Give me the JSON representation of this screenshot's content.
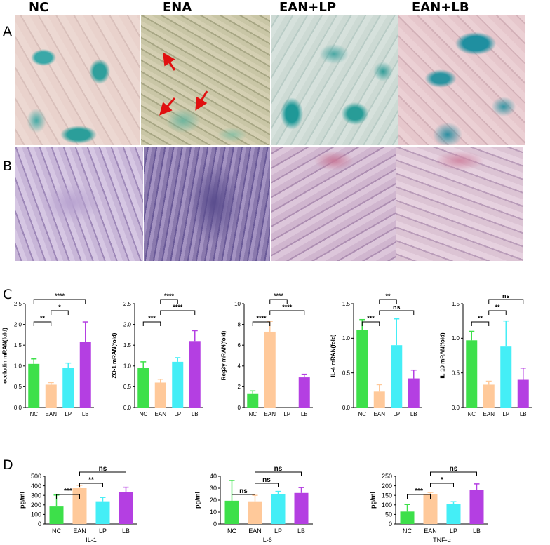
{
  "panel_labels": {
    "a": "A",
    "b": "B",
    "c": "C",
    "d": "D"
  },
  "column_headers": [
    "NC",
    "ENA",
    "EAN+LP",
    "EAN+LB"
  ],
  "colors": {
    "NC": "#3de04a",
    "EAN": "#ffc99a",
    "LP": "#44eef6",
    "LB": "#b43fe2"
  },
  "chart_data": [
    {
      "type": "bar",
      "categories": [
        "NC",
        "EAN",
        "LP",
        "LB"
      ],
      "values": [
        1.05,
        0.55,
        0.95,
        1.58
      ],
      "errors": [
        0.12,
        0.05,
        0.12,
        0.48
      ],
      "ylabel": "occludin mRAN(fold)",
      "ylim": [
        0,
        2.5
      ],
      "yticks": [
        "0.0",
        "0.5",
        "1.0",
        "1.5",
        "2.0",
        "2.5"
      ],
      "sig": [
        {
          "a": 0,
          "b": 1,
          "label": "**"
        },
        {
          "a": 1,
          "b": 2,
          "label": "*"
        },
        {
          "a": 0,
          "b": 3,
          "label": "****"
        }
      ]
    },
    {
      "type": "bar",
      "categories": [
        "NC",
        "EAN",
        "LP",
        "LB"
      ],
      "values": [
        0.95,
        0.6,
        1.1,
        1.6
      ],
      "errors": [
        0.15,
        0.08,
        0.1,
        0.25
      ],
      "ylabel": "ZO-1 mRAN(fold)",
      "ylim": [
        0,
        2.5
      ],
      "yticks": [
        "0.0",
        "0.5",
        "1.0",
        "1.5",
        "2.0",
        "2.5"
      ],
      "sig": [
        {
          "a": 0,
          "b": 1,
          "label": "***"
        },
        {
          "a": 1,
          "b": 3,
          "label": "****"
        },
        {
          "a": 1,
          "b": 2,
          "label": "****"
        }
      ]
    },
    {
      "type": "bar",
      "categories": [
        "NC",
        "EAN",
        "LP",
        "LB"
      ],
      "values": [
        1.3,
        7.3,
        0,
        2.9
      ],
      "errors": [
        0.3,
        1.0,
        0,
        0.3
      ],
      "ylabel": "Reg3γ mRAN(fold)",
      "ylim": [
        0,
        10
      ],
      "yticks": [
        "0",
        "2",
        "4",
        "6",
        "8",
        "10"
      ],
      "sig": [
        {
          "a": 0,
          "b": 1,
          "label": "****"
        },
        {
          "a": 1,
          "b": 3,
          "label": "****"
        },
        {
          "a": 1,
          "b": 2,
          "label": "****"
        }
      ]
    },
    {
      "type": "bar",
      "categories": [
        "NC",
        "EAN",
        "LP",
        "LB"
      ],
      "values": [
        1.12,
        0.23,
        0.9,
        0.42
      ],
      "errors": [
        0.15,
        0.1,
        0.38,
        0.12
      ],
      "ylabel": "IL-4 mRAN(fold)",
      "ylim": [
        0,
        1.5
      ],
      "yticks": [
        "0.0",
        "0.5",
        "1.0",
        "1.5"
      ],
      "sig": [
        {
          "a": 0,
          "b": 1,
          "label": "***"
        },
        {
          "a": 1,
          "b": 3,
          "label": "ns"
        },
        {
          "a": 1,
          "b": 2,
          "label": "**"
        }
      ]
    },
    {
      "type": "bar",
      "categories": [
        "NC",
        "EAN",
        "LP",
        "LB"
      ],
      "values": [
        0.97,
        0.33,
        0.88,
        0.4
      ],
      "errors": [
        0.13,
        0.05,
        0.37,
        0.17
      ],
      "ylabel": "IL-10 mRAN(fold)",
      "ylim": [
        0,
        1.5
      ],
      "yticks": [
        "0.0",
        "0.5",
        "1.0",
        "1.5"
      ],
      "sig": [
        {
          "a": 0,
          "b": 1,
          "label": "**"
        },
        {
          "a": 1,
          "b": 2,
          "label": "**"
        },
        {
          "a": 1,
          "b": 3,
          "label": "ns"
        }
      ]
    },
    {
      "type": "bar",
      "categories": [
        "NC",
        "EAN",
        "LP",
        "LB"
      ],
      "values": [
        183,
        375,
        238,
        335
      ],
      "errors": [
        120,
        30,
        40,
        50
      ],
      "ylabel": "pg/ml",
      "xlabel": "IL-1",
      "ylim": [
        0,
        500
      ],
      "yticks": [
        "0",
        "100",
        "200",
        "300",
        "400",
        "500"
      ],
      "sig": [
        {
          "a": 0,
          "b": 1,
          "label": "***"
        },
        {
          "a": 1,
          "b": 2,
          "label": "**"
        },
        {
          "a": 1,
          "b": 3,
          "label": "ns"
        }
      ]
    },
    {
      "type": "bar",
      "categories": [
        "NC",
        "EAN",
        "LP",
        "LB"
      ],
      "values": [
        19.5,
        19,
        24.8,
        26
      ],
      "errors": [
        17,
        5,
        2.5,
        4.5
      ],
      "ylabel": "pg/ml",
      "xlabel": "IL-6",
      "ylim": [
        0,
        40
      ],
      "yticks": [
        "0",
        "10",
        "20",
        "30",
        "40"
      ],
      "sig": [
        {
          "a": 0,
          "b": 1,
          "label": "ns"
        },
        {
          "a": 1,
          "b": 2,
          "label": "ns"
        },
        {
          "a": 1,
          "b": 3,
          "label": "ns"
        }
      ]
    },
    {
      "type": "bar",
      "categories": [
        "NC",
        "EAN",
        "LP",
        "LB"
      ],
      "values": [
        65,
        155,
        105,
        180
      ],
      "errors": [
        37,
        10,
        12,
        30
      ],
      "ylabel": "pg/ml",
      "xlabel": "TNF-α",
      "ylim": [
        0,
        250
      ],
      "yticks": [
        "0",
        "50",
        "100",
        "150",
        "200",
        "250"
      ],
      "sig": [
        {
          "a": 0,
          "b": 1,
          "label": "***"
        },
        {
          "a": 1,
          "b": 2,
          "label": "*"
        },
        {
          "a": 1,
          "b": 3,
          "label": "ns"
        }
      ]
    }
  ]
}
